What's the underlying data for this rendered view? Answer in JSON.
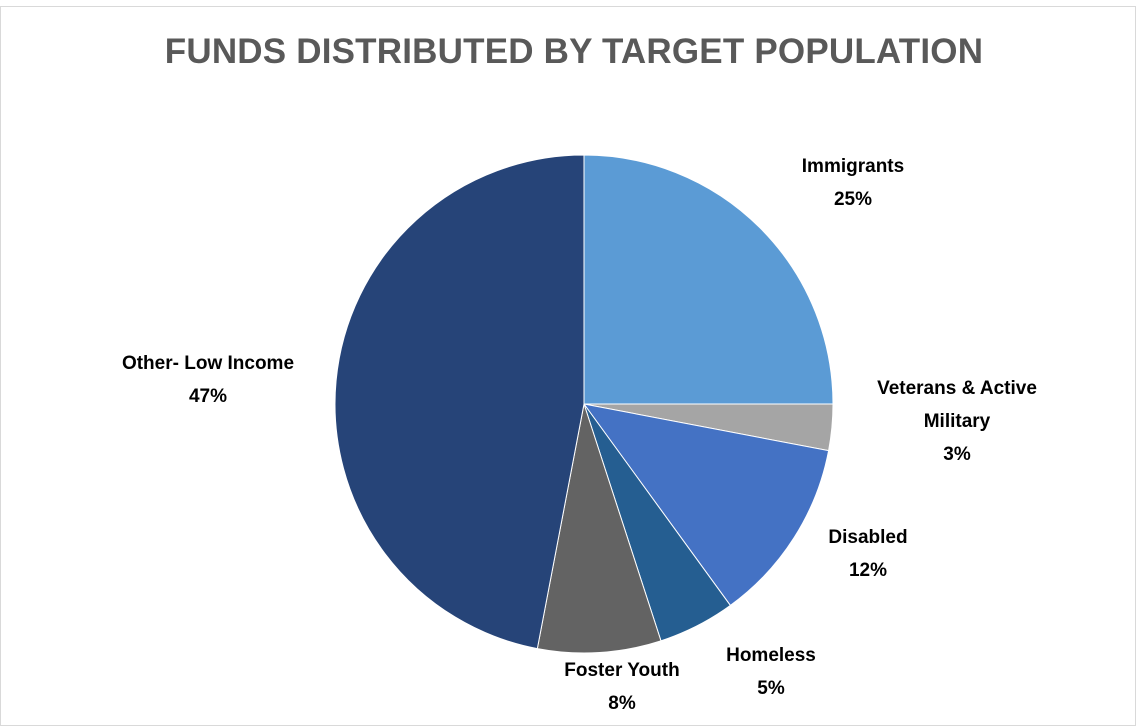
{
  "chart_data": {
    "type": "pie",
    "title": "FUNDS DISTRIBUTED BY TARGET POPULATION",
    "start_angle": "12 o'clock",
    "direction": "clockwise",
    "slices": [
      {
        "label": [
          "Immigrants"
        ],
        "value": 25,
        "value_label": "25%",
        "color": "#5B9BD5"
      },
      {
        "label": [
          "Veterans & Active",
          "Military"
        ],
        "value": 3,
        "value_label": "3%",
        "color": "#A5A5A5"
      },
      {
        "label": [
          "Disabled"
        ],
        "value": 12,
        "value_label": "12%",
        "color": "#4472C4"
      },
      {
        "label": [
          "Homeless"
        ],
        "value": 5,
        "value_label": "5%",
        "color": "#255E91"
      },
      {
        "label": [
          "Foster Youth"
        ],
        "value": 8,
        "value_label": "8%",
        "color": "#636363"
      },
      {
        "label": [
          "Other- Low Income"
        ],
        "value": 47,
        "value_label": "47%",
        "color": "#264478"
      }
    ]
  }
}
